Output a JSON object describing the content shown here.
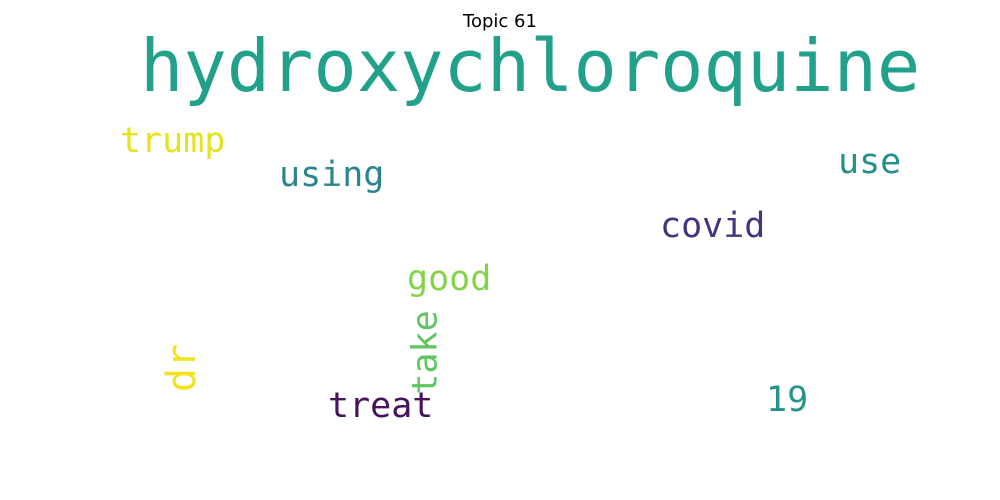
{
  "title": "Topic 61",
  "words": [
    {
      "text": "hydroxychloroquine",
      "color": "#21a08a",
      "orientation": "horizontal"
    },
    {
      "text": "trump",
      "color": "#e3e31f",
      "orientation": "horizontal"
    },
    {
      "text": "using",
      "color": "#2b858e",
      "orientation": "horizontal"
    },
    {
      "text": "use",
      "color": "#23908b",
      "orientation": "horizontal"
    },
    {
      "text": "covid",
      "color": "#463480",
      "orientation": "horizontal"
    },
    {
      "text": "good",
      "color": "#84d447",
      "orientation": "horizontal"
    },
    {
      "text": "take",
      "color": "#5ec65f",
      "orientation": "vertical"
    },
    {
      "text": "dr",
      "color": "#f1e31d",
      "orientation": "vertical"
    },
    {
      "text": "treat",
      "color": "#46135f",
      "orientation": "horizontal"
    },
    {
      "text": "19",
      "color": "#26938b",
      "orientation": "horizontal"
    }
  ]
}
